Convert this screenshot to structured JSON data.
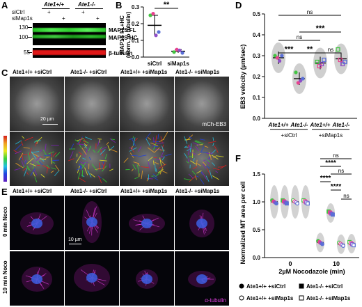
{
  "panels": {
    "A": "A",
    "B": "B",
    "C": "C",
    "D": "D",
    "E": "E",
    "F": "F"
  },
  "panelA": {
    "genotype1": "Ate1+/+",
    "genotype2": "Ate1-/-",
    "row_sictrl": "siCtrl",
    "row_simap1s": "siMap1s",
    "plus": "+",
    "mw": [
      "130",
      "100",
      "55"
    ],
    "band1": "MAP1S FL",
    "band2": "MAP1S HC",
    "band3": "β-tubulin"
  },
  "panelB": {
    "ylabel_line1": "MAP1S FL+HC",
    "ylabel_line2": "(norm. to tubulin)",
    "yticks": [
      "0.0",
      "0.1",
      "0.2",
      "0.3"
    ],
    "xticks": [
      "siCtrl",
      "siMap1s"
    ],
    "sig": "**"
  },
  "chart_data": [
    {
      "type": "bar",
      "panel": "B",
      "categories": [
        "siCtrl",
        "siMap1s"
      ],
      "values": [
        0.19,
        0.035
      ],
      "errors": [
        0.06,
        0.01
      ],
      "points": [
        [
          0.25,
          0.26,
          0.13,
          0.15
        ],
        [
          0.03,
          0.045,
          0.04,
          0.025
        ]
      ],
      "ylabel": "MAP1S FL+HC (norm. to tubulin)",
      "ylim": [
        0,
        0.3
      ]
    },
    {
      "type": "scatter",
      "panel": "D",
      "categories": [
        "Ate1+/+ siCtrl",
        "Ate1-/- siCtrl",
        "Ate1+/+ siMap1s",
        "Ate1-/- siMap1s"
      ],
      "means": [
        0.29,
        0.19,
        0.265,
        0.285
      ],
      "points": [
        [
          0.3,
          0.29,
          0.275,
          0.3
        ],
        [
          0.22,
          0.17,
          0.18,
          0.19
        ],
        [
          0.27,
          0.25,
          0.26,
          0.28
        ],
        [
          0.33,
          0.28,
          0.26,
          0.27
        ]
      ],
      "ylabel": "EB3 velocity (µm/sec)",
      "ylim": [
        0,
        0.5
      ]
    },
    {
      "type": "scatter",
      "panel": "F",
      "xlabel": "2µM Nocodazole (min)",
      "ylabel": "Normalized MT area per cell",
      "x_categories": [
        "0",
        "10"
      ],
      "series": [
        {
          "name": "Ate1+/+ +siCtrl",
          "x": [
            "0",
            "10"
          ],
          "values": [
            1.0,
            0.27
          ]
        },
        {
          "name": "Ate1-/- +siCtrl",
          "x": [
            "0",
            "10"
          ],
          "values": [
            1.0,
            0.8
          ]
        },
        {
          "name": "Ate1+/+ +siMap1s",
          "x": [
            "0",
            "10"
          ],
          "values": [
            1.0,
            0.24
          ]
        },
        {
          "name": "Ate1-/- +siMap1s",
          "x": [
            "0",
            "10"
          ],
          "values": [
            1.0,
            0.25
          ]
        }
      ],
      "ylim": [
        0,
        1.5
      ]
    }
  ],
  "panelD": {
    "ylabel": "EB3 velocity (µm/sec)",
    "yticks": [
      "0.0",
      "0.1",
      "0.2",
      "0.3",
      "0.4",
      "0.5"
    ],
    "xlab": [
      "Ate1+/+",
      "Ate1-/-",
      "Ate1+/+",
      "Ate1-/-"
    ],
    "group1": "+siCtrl",
    "group2": "+siMap1s",
    "sig": [
      "ns",
      "***",
      "ns",
      "***",
      "**",
      "ns"
    ]
  },
  "panelC": {
    "headers": [
      "Ate1+/+ +siCtrl",
      "Ate1-/- +siCtrl",
      "Ate1+/+ +siMap1s",
      "Ate1-/- +siMap1s"
    ],
    "scale": "20 µm",
    "probe": "mCh-EB3"
  },
  "panelE": {
    "headers": [
      "Ate1+/+ +siCtrl",
      "Ate1-/- +siCtrl",
      "Ate1+/+ +siMap1s",
      "Ate1-/- +siMap1s"
    ],
    "row1": "0 min Noco",
    "row2": "10 min Noco",
    "scale": "10 µm",
    "probe": "α-tubulin"
  },
  "panelF": {
    "ylabel": "Normalized MT area per cell",
    "yticks": [
      "0.0",
      "0.5",
      "1.0",
      "1.5"
    ],
    "xticks": [
      "0",
      "10"
    ],
    "xlabel": "2µM Nocodazole (min)",
    "sig": [
      "ns",
      "****",
      "ns",
      "****",
      "****",
      "ns"
    ],
    "legend": [
      "Ate1+/+ +siCtrl",
      "Ate1-/- +siCtrl",
      "Ate1+/+ +siMap1s",
      "Ate1-/- +siMap1s"
    ]
  },
  "colors": {
    "accent": "#e8428f",
    "green": "#43c443",
    "blue": "#5a6fd6",
    "purple": "#8f4fc7",
    "magenta": "#d01fc9"
  }
}
